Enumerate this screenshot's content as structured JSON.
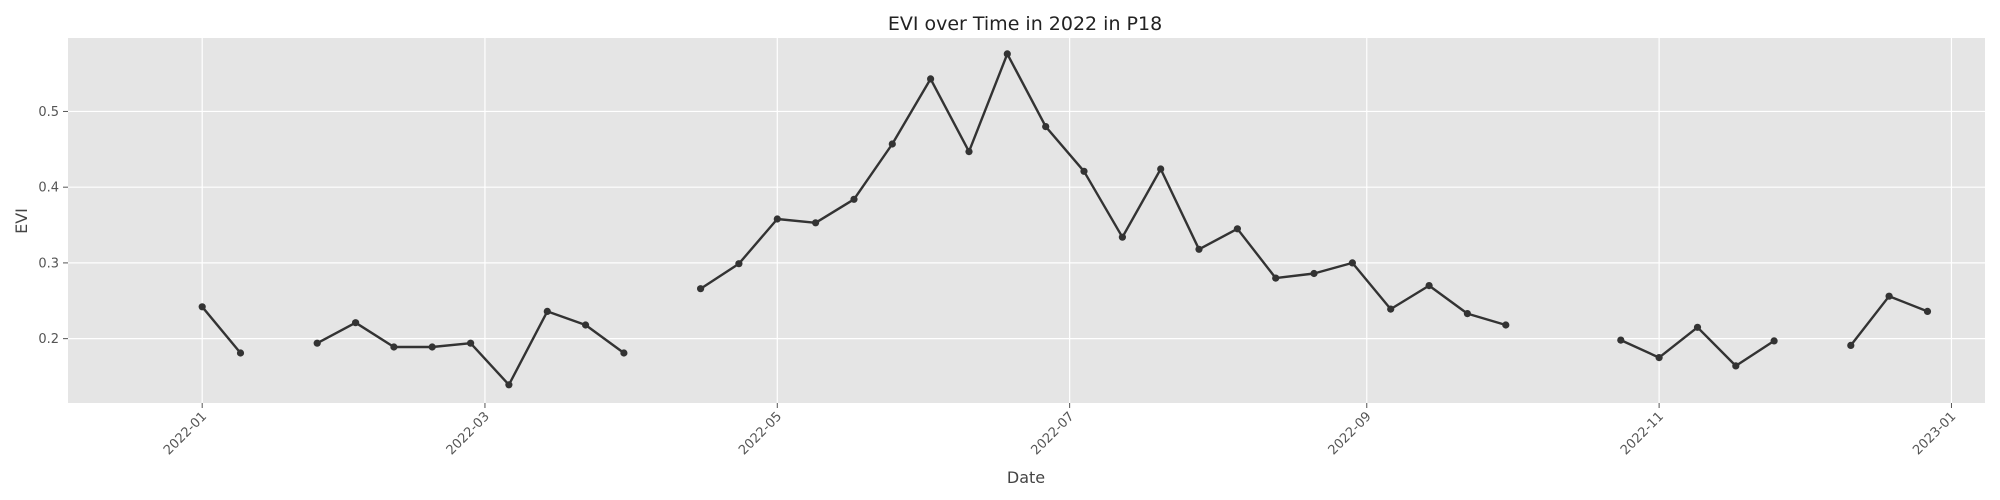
{
  "chart_data": {
    "type": "line",
    "title": "EVI over Time in 2022 in P18",
    "xlabel": "Date",
    "ylabel": "EVI",
    "xlim": [
      "2021-12-04",
      "2023-01-08"
    ],
    "ylim": [
      0.115,
      0.597
    ],
    "grid": true,
    "x_ticks": [
      "2022-01-01",
      "2022-03-01",
      "2022-05-01",
      "2022-07-01",
      "2022-09-01",
      "2022-11-01",
      "2023-01-01"
    ],
    "x_tick_labels": [
      "2022-01",
      "2022-03",
      "2022-05",
      "2022-07",
      "2022-09",
      "2022-11",
      "2023-01"
    ],
    "y_ticks": [
      0.2,
      0.3,
      0.4,
      0.5
    ],
    "y_tick_labels": [
      "0.2",
      "0.3",
      "0.4",
      "0.5"
    ],
    "colors": {
      "line": "#333333",
      "plot_bg": "#e5e5e5",
      "grid": "#ffffff"
    },
    "series": [
      {
        "x": [
          "2022-01-01",
          "2022-01-09",
          null,
          "2022-01-25",
          "2022-02-02",
          "2022-02-10",
          "2022-02-18",
          "2022-02-26",
          "2022-03-06",
          "2022-03-14",
          "2022-03-22",
          "2022-03-30",
          null,
          "2022-04-15",
          "2022-04-23",
          "2022-05-01",
          "2022-05-09",
          "2022-05-17",
          "2022-05-25",
          "2022-06-02",
          "2022-06-10",
          "2022-06-18",
          "2022-06-26",
          "2022-07-04",
          "2022-07-12",
          "2022-07-20",
          "2022-07-28",
          "2022-08-05",
          "2022-08-13",
          "2022-08-21",
          "2022-08-29",
          "2022-09-06",
          "2022-09-14",
          "2022-09-22",
          "2022-09-30",
          null,
          "2022-10-24",
          "2022-11-01",
          "2022-11-09",
          "2022-11-17",
          "2022-11-25",
          null,
          "2022-12-11",
          "2022-12-19",
          "2022-12-27"
        ],
        "values": [
          0.242,
          0.181,
          null,
          0.194,
          0.221,
          0.189,
          0.189,
          0.194,
          0.139,
          0.236,
          0.218,
          0.181,
          null,
          0.266,
          0.299,
          0.358,
          0.353,
          0.384,
          0.457,
          0.543,
          0.447,
          0.576,
          0.48,
          0.421,
          0.334,
          0.424,
          0.318,
          0.345,
          0.28,
          0.286,
          0.3,
          0.239,
          0.27,
          0.233,
          0.218,
          null,
          0.198,
          0.175,
          0.215,
          0.164,
          0.197,
          null,
          0.191,
          0.256,
          0.236
        ]
      }
    ]
  }
}
